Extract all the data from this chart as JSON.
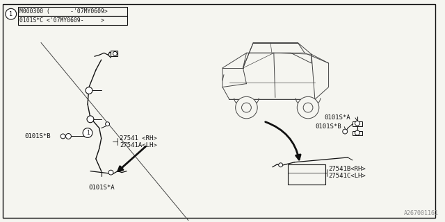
{
  "bg_color": "#f5f5f0",
  "border_color": "#222222",
  "part_number": "A267001161",
  "legend_row1": "M000300 (      -'07MY0609>",
  "legend_row2": "0101S*C <'07MY0609-     >",
  "font_size": 6.5,
  "line_color": "#111111",
  "gray_line": "#999999"
}
